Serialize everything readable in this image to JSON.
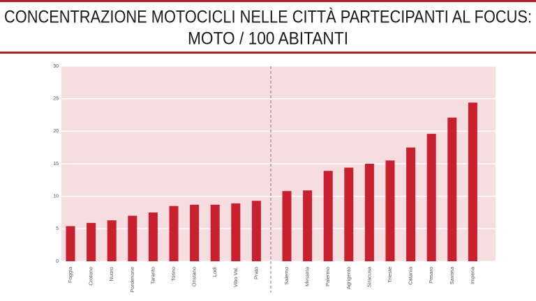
{
  "chart_data": {
    "type": "bar",
    "title": [
      "CONCENTRAZIONE MOTOCICLI NELLE CITTÀ PARTECIPANTI AL FOCUS:",
      "MOTO / 100 ABITANTI"
    ],
    "categories": [
      "Foggia",
      "Crotone",
      "Nuoro",
      "Pordenone",
      "Taranto",
      "Torino",
      "Oristano",
      "Lodi",
      "Vibo Val.",
      "Prato",
      "Salerno",
      "Messina",
      "Palermo",
      "Agrigento",
      "Siracusa",
      "Trieste",
      "Catania",
      "Pesaro",
      "Savona",
      "Imperia"
    ],
    "values": [
      5.4,
      5.9,
      6.3,
      7.0,
      7.5,
      8.5,
      8.7,
      8.7,
      8.9,
      9.3,
      10.8,
      10.9,
      13.9,
      14.4,
      15.0,
      15.5,
      17.5,
      19.6,
      22.1,
      24.4
    ],
    "color": "#c8202f",
    "ylim": [
      0,
      30
    ],
    "yticks": [
      0,
      5,
      10,
      15,
      20,
      25,
      30
    ],
    "grid": true
  }
}
